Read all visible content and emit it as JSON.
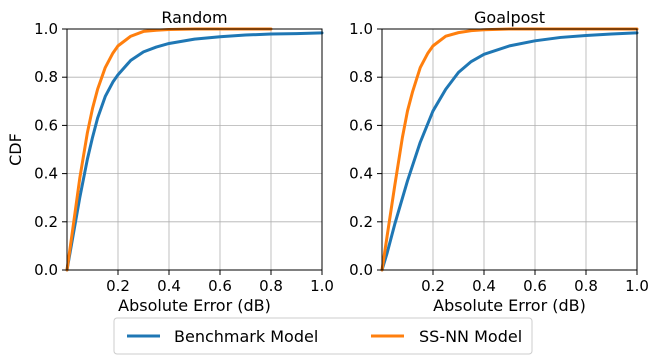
{
  "chart_data": [
    {
      "type": "line",
      "title": "Random",
      "xlabel": "Absolute Error (dB)",
      "ylabel": "CDF",
      "xlim": [
        0.0,
        1.0
      ],
      "ylim": [
        0.0,
        1.0
      ],
      "xticks": [
        0.2,
        0.4,
        0.6,
        0.8,
        1.0
      ],
      "xtick_labels": [
        "0.2",
        "0.4",
        "0.6",
        "0.8",
        "1.0"
      ],
      "yticks": [
        0.0,
        0.2,
        0.4,
        0.6,
        0.8,
        1.0
      ],
      "ytick_labels": [
        "0.0",
        "0.2",
        "0.4",
        "0.6",
        "0.8",
        "1.0"
      ],
      "grid": true,
      "series": [
        {
          "name": "Benchmark Model",
          "color": "#1f77b4",
          "x": [
            0.0,
            0.02,
            0.05,
            0.08,
            0.1,
            0.12,
            0.15,
            0.18,
            0.2,
            0.25,
            0.3,
            0.35,
            0.4,
            0.5,
            0.6,
            0.7,
            0.8,
            0.9,
            1.0
          ],
          "y": [
            0.0,
            0.12,
            0.3,
            0.46,
            0.55,
            0.63,
            0.72,
            0.78,
            0.81,
            0.87,
            0.905,
            0.925,
            0.94,
            0.958,
            0.968,
            0.975,
            0.979,
            0.981,
            0.984
          ]
        },
        {
          "name": "SS-NN Model",
          "color": "#ff7f0e",
          "x": [
            0.0,
            0.02,
            0.05,
            0.08,
            0.1,
            0.12,
            0.15,
            0.18,
            0.2,
            0.25,
            0.3,
            0.35,
            0.4,
            0.5,
            0.6,
            0.7,
            0.8
          ],
          "y": [
            0.0,
            0.15,
            0.38,
            0.57,
            0.67,
            0.75,
            0.84,
            0.9,
            0.93,
            0.97,
            0.99,
            0.995,
            0.998,
            1.0,
            1.0,
            1.0,
            1.0
          ]
        }
      ]
    },
    {
      "type": "line",
      "title": "Goalpost",
      "xlabel": "Absolute Error (dB)",
      "ylabel": "",
      "xlim": [
        0.0,
        1.0
      ],
      "ylim": [
        0.0,
        1.0
      ],
      "xticks": [
        0.2,
        0.4,
        0.6,
        0.8,
        1.0
      ],
      "xtick_labels": [
        "0.2",
        "0.4",
        "0.6",
        "0.8",
        "1.0"
      ],
      "yticks": [
        0.0,
        0.2,
        0.4,
        0.6,
        0.8,
        1.0
      ],
      "ytick_labels": [
        "0.0",
        "0.2",
        "0.4",
        "0.6",
        "0.8",
        "1.0"
      ],
      "grid": true,
      "series": [
        {
          "name": "Benchmark Model",
          "color": "#1f77b4",
          "x": [
            0.0,
            0.02,
            0.05,
            0.1,
            0.15,
            0.2,
            0.25,
            0.3,
            0.35,
            0.4,
            0.5,
            0.6,
            0.7,
            0.8,
            0.9,
            1.0
          ],
          "y": [
            0.0,
            0.07,
            0.19,
            0.37,
            0.53,
            0.66,
            0.75,
            0.82,
            0.865,
            0.895,
            0.93,
            0.951,
            0.965,
            0.973,
            0.979,
            0.984
          ]
        },
        {
          "name": "SS-NN Model",
          "color": "#ff7f0e",
          "x": [
            0.0,
            0.02,
            0.05,
            0.08,
            0.1,
            0.12,
            0.15,
            0.18,
            0.2,
            0.25,
            0.3,
            0.35,
            0.4,
            0.5,
            0.6,
            0.8,
            1.0
          ],
          "y": [
            0.0,
            0.14,
            0.35,
            0.55,
            0.66,
            0.74,
            0.84,
            0.9,
            0.93,
            0.97,
            0.985,
            0.993,
            0.997,
            1.0,
            1.0,
            1.0,
            1.0
          ]
        }
      ]
    }
  ],
  "legend": {
    "placement": "bottom-center",
    "items": [
      {
        "label": "Benchmark Model",
        "color": "#1f77b4"
      },
      {
        "label": "SS-NN Model",
        "color": "#ff7f0e"
      }
    ]
  }
}
